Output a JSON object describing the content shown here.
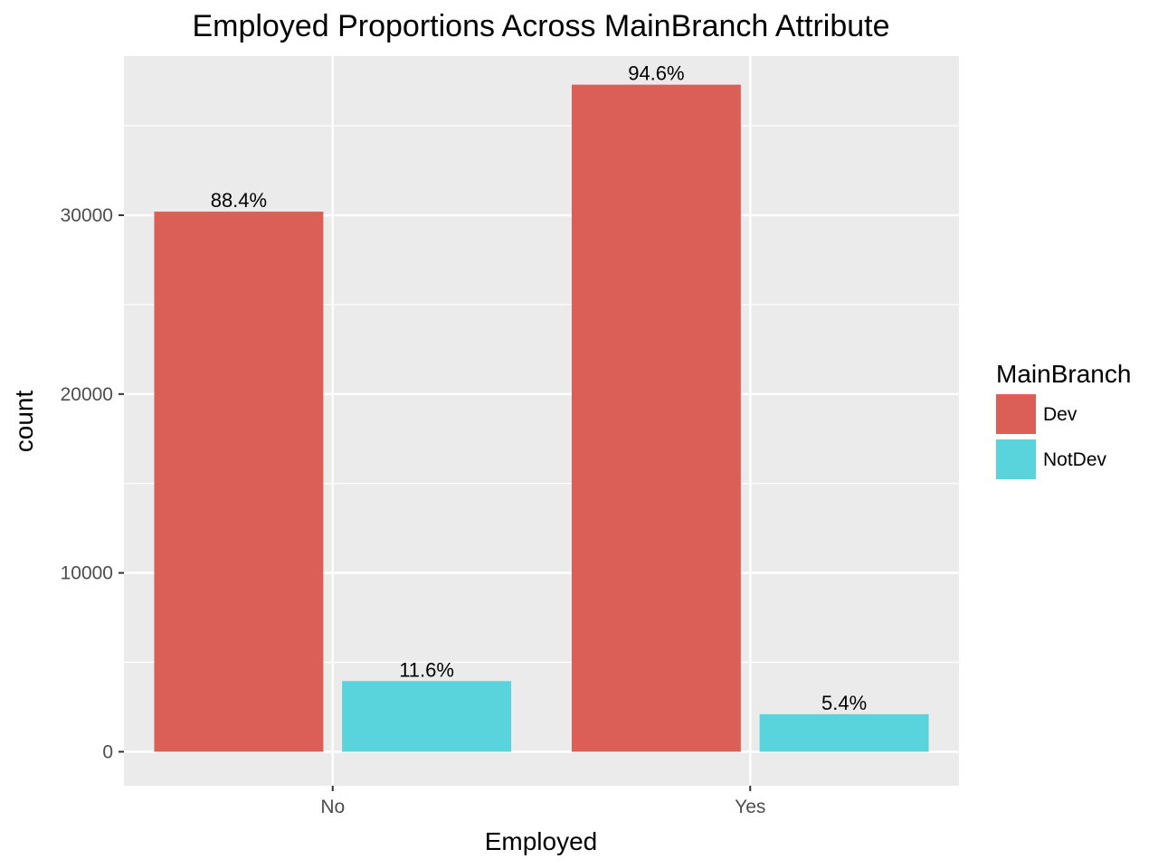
{
  "chart_data": {
    "type": "bar",
    "title": "Employed Proportions Across MainBranch Attribute",
    "xlabel": "Employed",
    "ylabel": "count",
    "categories": [
      "No",
      "Yes"
    ],
    "series": [
      {
        "name": "Dev",
        "color": "#dc5f57",
        "values": [
          30200,
          37300
        ],
        "labels": [
          "88.4%",
          "94.6%"
        ]
      },
      {
        "name": "NotDev",
        "color": "#59d3dc",
        "values": [
          3950,
          2100
        ],
        "labels": [
          "11.6%",
          "5.4%"
        ]
      }
    ],
    "ylim": [
      -1900,
      38900
    ],
    "yticks": [
      0,
      10000,
      20000,
      30000
    ],
    "ytick_labels": [
      "0",
      "10000",
      "20000",
      "30000"
    ],
    "grid": true,
    "panel_background": "#ebebeb",
    "legend": {
      "title": "MainBranch",
      "position": "right"
    }
  }
}
